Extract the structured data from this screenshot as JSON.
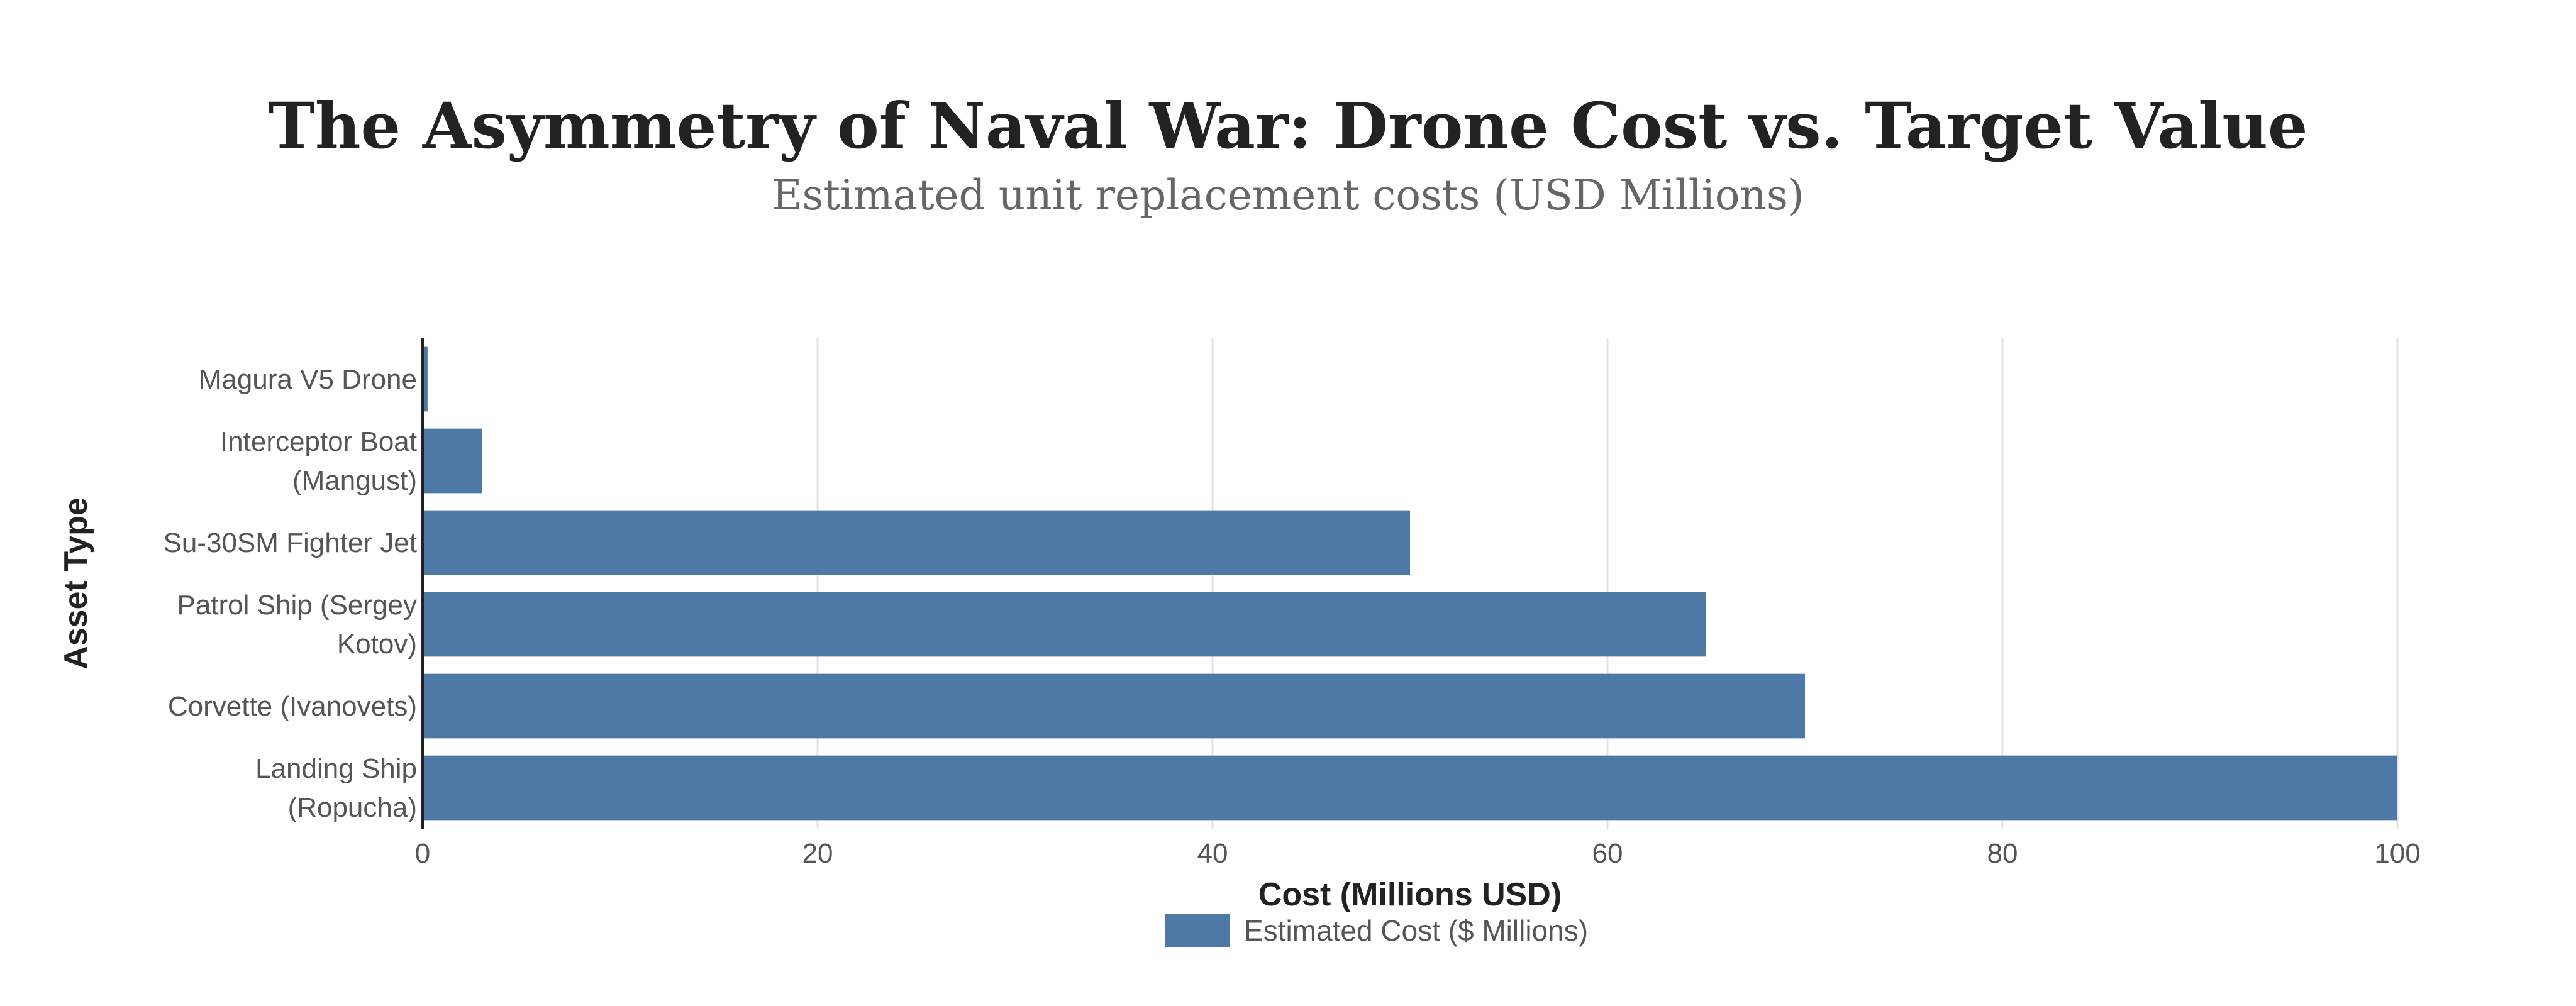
{
  "chart_data": {
    "type": "bar",
    "orientation": "horizontal",
    "title": "The Asymmetry of Naval War: Drone Cost vs. Target Value",
    "subtitle": "Estimated unit replacement costs (USD Millions)",
    "xlabel": "Cost (Millions USD)",
    "ylabel": "Asset Type",
    "categories": [
      [
        "Magura V5 Drone"
      ],
      [
        "Interceptor Boat",
        "(Mangust)"
      ],
      [
        "Su-30SM Fighter Jet"
      ],
      [
        "Patrol Ship (Sergey",
        "Kotov)"
      ],
      [
        "Corvette (Ivanovets)"
      ],
      [
        "Landing Ship",
        "(Ropucha)"
      ]
    ],
    "series": [
      {
        "name": "Estimated Cost ($ Millions)",
        "values": [
          0.25,
          3,
          50,
          65,
          70,
          100
        ],
        "color": "#4e79a7"
      }
    ],
    "xlim": [
      0,
      100
    ],
    "xticks": [
      "0",
      "20",
      "40",
      "60",
      "80",
      "100"
    ],
    "xtick_values": [
      0,
      20,
      40,
      60,
      80,
      100
    ],
    "grid": true,
    "legend_position": "bottom"
  }
}
